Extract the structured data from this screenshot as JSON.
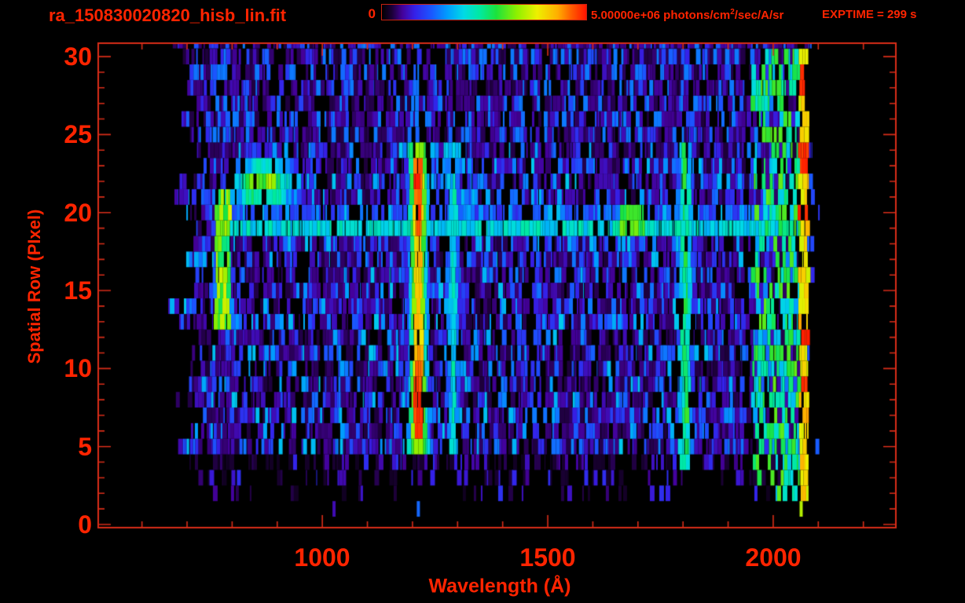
{
  "header": {
    "title": "ra_150830020820_hisb_lin.fit",
    "colorbar": {
      "min_label": "0",
      "max_label": "5.00000e+06",
      "units_prefix": " photons/cm",
      "units_sup": "2",
      "units_suffix": "/sec/A/sr"
    },
    "exptime": "EXPTIME = 299 s"
  },
  "chart_data": {
    "type": "heatmap",
    "title": "ra_150830020820_hisb_lin.fit",
    "xlabel": "Wavelength (Å)",
    "ylabel": "Spatial Row (PIxel)",
    "x_ticks": [
      1000,
      1500,
      2000
    ],
    "y_ticks": [
      0,
      5,
      10,
      15,
      20,
      25,
      30
    ],
    "x_minor_step_A": 100,
    "y_minor_step_rows": 1,
    "x_range_A": [
      503,
      2272
    ],
    "y_range_rows": [
      -0.2,
      30.86
    ],
    "data_extent": {
      "wavelength_A": [
        640,
        2105
      ],
      "rows": [
        1,
        30
      ]
    },
    "colorbar": {
      "min": 0,
      "max": 5000000,
      "units": "photons/cm2/sec/A/sr"
    },
    "exptime_s": 299,
    "grid": false,
    "features": {
      "background_noise": {
        "rows": [
          2,
          30
        ],
        "density_by_row": {
          "2": 0.12,
          "3": 0.3,
          "4": 0.6,
          "top_25_30": 0.8,
          "default": 0.82
        },
        "intensity_range": [
          0.04,
          0.38
        ],
        "top_rows_max_intensity": 0.28,
        "dead_column_count": 14
      },
      "lyman_alpha_line": {
        "wavelength": 1213,
        "sigma_A": 14,
        "rows": [
          5,
          24
        ],
        "intensity": 0.85,
        "core_intensity": 1.0,
        "core_halfwidth_A": 9,
        "bright_core_rows": [
          [
            6,
            10
          ],
          [
            19,
            23
          ]
        ],
        "cap_rows": [
          5,
          24
        ],
        "cap_intensity": 0.68,
        "cap_sigma_A": 22
      },
      "line_1290": {
        "wavelength": 1291,
        "sigma_A": 10,
        "rows": [
          5,
          24
        ],
        "intensity": 0.42
      },
      "line_1805": {
        "wavelength": 1805,
        "sigma_A": 12,
        "rows": [
          4,
          24
        ],
        "intensity": 0.52
      },
      "bright_row_streak": {
        "row": 19,
        "secondary_row": 20,
        "wavelength_range": [
          770,
          2060
        ],
        "intensity": 0.4,
        "secondary_intensity": 0.24,
        "hotspot_wavelength": 1688,
        "hotspot_halfwidth_A": 28,
        "hotspot_intensity": 0.62
      },
      "hook_vertical": {
        "wavelength_range": [
          763,
          797
        ],
        "rows": [
          13,
          21
        ],
        "intensity": 0.65
      },
      "hook_blob": {
        "wavelength": 869,
        "sigma_A": 55,
        "row_center": 21.8,
        "row_sigma": 1.3,
        "intensity": 0.68
      },
      "cyan_patch": {
        "wavelength_range": [
          1225,
          1335
        ],
        "rows": [
          20,
          24
        ],
        "intensity": 0.3
      },
      "faint_line_1035": {
        "wavelength": 1035,
        "sigma_A": 8,
        "rows": [
          5,
          12
        ],
        "intensity": 0.27
      },
      "faint_line_1476": {
        "wavelength": 1476,
        "sigma_A": 8,
        "rows": [
          6,
          20
        ],
        "intensity": 0.22
      },
      "right_green_zone": {
        "wavelength_range": [
          1955,
          2058
        ],
        "rows": [
          2,
          30
        ],
        "intensity": 0.5,
        "patchiness": 0.38
      },
      "terminal_column": {
        "wavelength_range": [
          2058,
          2078
        ],
        "rows": [
          2,
          30
        ],
        "intensity": 0.85,
        "red_spot_probability": 0.25
      },
      "after_terminal_sparse": {
        "wavelength_range": [
          2080,
          2105
        ],
        "intensity": 0.15,
        "density": 0.18
      },
      "row1_marks": [
        {
          "wavelength": 1026,
          "intensity": 0.12
        },
        {
          "wavelength": 1213,
          "intensity": 0.26
        },
        {
          "wavelength": 2062,
          "intensity": 0.7
        }
      ]
    }
  },
  "colors": {
    "text_red": "#ff2400",
    "axis_red": "#d92d18",
    "background": "#000000",
    "colormap_stops": [
      [
        0.0,
        0,
        0,
        0
      ],
      [
        0.05,
        28,
        0,
        56
      ],
      [
        0.1,
        68,
        1,
        154
      ],
      [
        0.16,
        53,
        32,
        232
      ],
      [
        0.24,
        27,
        85,
        255
      ],
      [
        0.32,
        0,
        156,
        255
      ],
      [
        0.4,
        0,
        217,
        230
      ],
      [
        0.48,
        0,
        233,
        160
      ],
      [
        0.56,
        28,
        226,
        60
      ],
      [
        0.66,
        142,
        240,
        0
      ],
      [
        0.76,
        238,
        240,
        0
      ],
      [
        0.86,
        255,
        174,
        0
      ],
      [
        0.93,
        255,
        90,
        0
      ],
      [
        1.0,
        255,
        20,
        0
      ]
    ]
  }
}
